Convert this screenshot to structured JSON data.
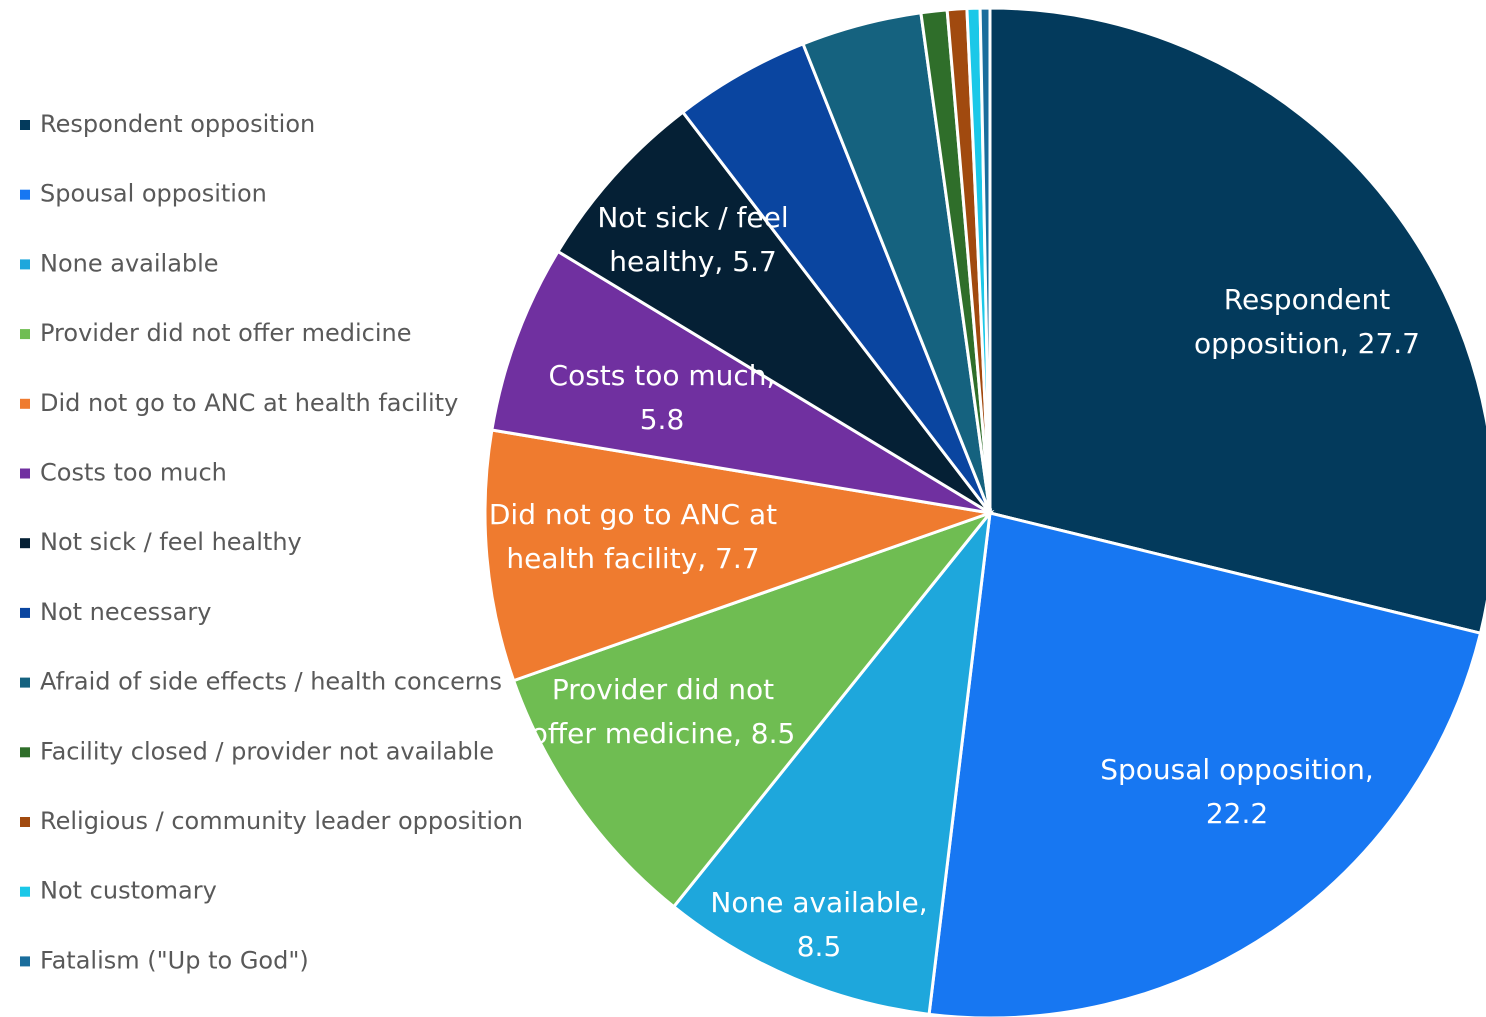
{
  "chart_data": {
    "type": "pie",
    "categories": [
      "Respondent opposition",
      "Spousal opposition",
      "None available",
      "Provider did not offer medicine",
      "Did not go to ANC at health facility",
      "Costs too much",
      "Not sick / feel healthy",
      "Not necessary",
      "Afraid of side effects / health concerns",
      "Facility closed / provider not available",
      "Religious / community leader opposition",
      "Not customary",
      "Fatalism (\"Up to God\")"
    ],
    "values": [
      27.7,
      22.2,
      8.5,
      8.5,
      7.7,
      5.8,
      5.7,
      4.2,
      3.7,
      0.8,
      0.6,
      0.4,
      0.3
    ],
    "value_labels": [
      "Respondent opposition,  27.7",
      "Spousal opposition, 22.2",
      "None available, 8.5",
      "Provider did not offer medicine,  8.5",
      "Did not go to ANC at health facility, 7.7",
      "Costs too much, 5.8",
      "Not sick / feel healthy,  5.7",
      null,
      null,
      null,
      null,
      null,
      null
    ],
    "colors": [
      "#033a5c",
      "#1777f2",
      "#1ea7dc",
      "#6fbd52",
      "#ef7b2f",
      "#7030a0",
      "#052035",
      "#0a45a0",
      "#15627f",
      "#2f6e2a",
      "#a14a0f",
      "#1bc8e8",
      "#1a6d9c"
    ],
    "legend": "left"
  }
}
